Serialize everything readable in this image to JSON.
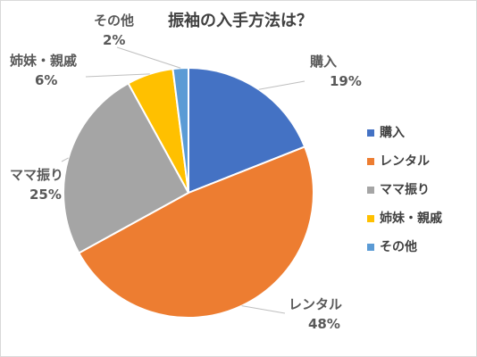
{
  "chart_data": {
    "type": "pie",
    "title": "振袖の入手方法は？",
    "slices": [
      {
        "label": "購入",
        "value": 19,
        "value_label": "19%",
        "color": "#4472C4"
      },
      {
        "label": "レンタル",
        "value": 48,
        "value_label": "48%",
        "color": "#ED7D31"
      },
      {
        "label": "ママ振り",
        "value": 25,
        "value_label": "25%",
        "color": "#A5A5A5"
      },
      {
        "label": "姉妹・親戚",
        "value": 6,
        "value_label": "6%",
        "color": "#FFC000"
      },
      {
        "label": "その他",
        "value": 2,
        "value_label": "2%",
        "color": "#5B9BD5"
      }
    ],
    "legend_position": "right"
  }
}
